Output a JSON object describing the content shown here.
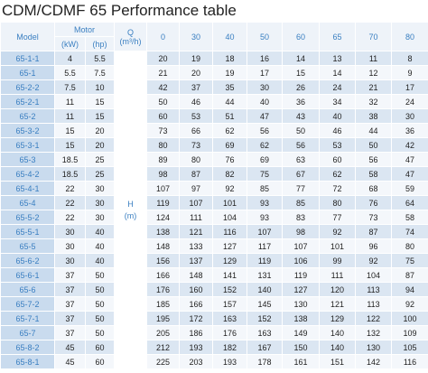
{
  "title": "CDM/CDMF 65 Performance table",
  "header": {
    "model": "Model",
    "motor": "Motor",
    "kw": "(kW)",
    "hp": "(hp)",
    "q": "Q",
    "q_unit": "(m³/h)",
    "flows": [
      "0",
      "30",
      "40",
      "50",
      "60",
      "65",
      "70",
      "80"
    ]
  },
  "h_label": "H",
  "h_unit": "(m)",
  "rows": [
    [
      "65-1-1",
      4,
      5.5,
      20,
      19,
      18,
      16,
      14,
      13,
      11,
      8
    ],
    [
      "65-1",
      5.5,
      7.5,
      21,
      20,
      19,
      17,
      15,
      14,
      12,
      9
    ],
    [
      "65-2-2",
      7.5,
      10,
      42,
      37,
      35,
      30,
      26,
      24,
      21,
      17
    ],
    [
      "65-2-1",
      11,
      15,
      50,
      46,
      44,
      40,
      36,
      34,
      32,
      24
    ],
    [
      "65-2",
      11,
      15,
      60,
      53,
      51,
      47,
      43,
      40,
      38,
      30
    ],
    [
      "65-3-2",
      15,
      20,
      73,
      66,
      62,
      56,
      50,
      46,
      44,
      36
    ],
    [
      "65-3-1",
      15,
      20,
      80,
      73,
      69,
      62,
      56,
      53,
      50,
      42
    ],
    [
      "65-3",
      18.5,
      25,
      89,
      80,
      76,
      69,
      63,
      60,
      56,
      47
    ],
    [
      "65-4-2",
      18.5,
      25,
      98,
      87,
      82,
      75,
      67,
      62,
      58,
      47
    ],
    [
      "65-4-1",
      22,
      30,
      107,
      97,
      92,
      85,
      77,
      72,
      68,
      59
    ],
    [
      "65-4",
      22,
      30,
      119,
      107,
      101,
      93,
      85,
      80,
      76,
      64
    ],
    [
      "65-5-2",
      22,
      30,
      124,
      111,
      104,
      93,
      83,
      77,
      73,
      58
    ],
    [
      "65-5-1",
      30,
      40,
      138,
      121,
      116,
      107,
      98,
      92,
      87,
      74
    ],
    [
      "65-5",
      30,
      40,
      148,
      133,
      127,
      117,
      107,
      101,
      96,
      80
    ],
    [
      "65-6-2",
      30,
      40,
      156,
      137,
      129,
      119,
      106,
      99,
      92,
      75
    ],
    [
      "65-6-1",
      37,
      50,
      166,
      148,
      141,
      131,
      119,
      111,
      104,
      87
    ],
    [
      "65-6",
      37,
      50,
      176,
      160,
      152,
      140,
      127,
      120,
      113,
      94
    ],
    [
      "65-7-2",
      37,
      50,
      185,
      166,
      157,
      145,
      130,
      121,
      113,
      92
    ],
    [
      "65-7-1",
      37,
      50,
      195,
      172,
      163,
      152,
      138,
      129,
      122,
      100
    ],
    [
      "65-7",
      37,
      50,
      205,
      186,
      176,
      163,
      149,
      140,
      132,
      109
    ],
    [
      "65-8-2",
      45,
      60,
      212,
      193,
      182,
      167,
      150,
      140,
      130,
      105
    ],
    [
      "65-8-1",
      45,
      60,
      225,
      203,
      193,
      178,
      161,
      151,
      142,
      116
    ]
  ]
}
